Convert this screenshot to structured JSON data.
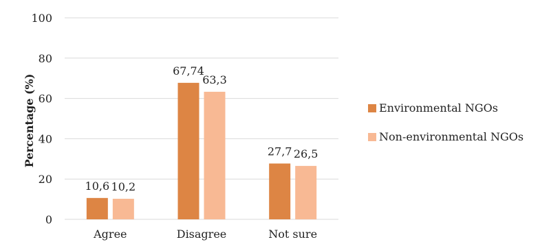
{
  "chart_data": {
    "type": "bar",
    "categories": [
      "Agree",
      "Disagree",
      "Not sure"
    ],
    "series": [
      {
        "name": "Environmental NGOs",
        "values": [
          10.6,
          67.74,
          27.7
        ],
        "labels": [
          "10,6",
          "67,74",
          "27,7"
        ],
        "color": "#dd8544"
      },
      {
        "name": "Non-environmental NGOs",
        "values": [
          10.2,
          63.3,
          26.5
        ],
        "labels": [
          "10,2",
          "63,3",
          "26,5"
        ],
        "color": "#f8b994"
      }
    ],
    "title": "",
    "xlabel": "",
    "ylabel": "Percentage (%)",
    "ylim": [
      0,
      100
    ],
    "yticks": [
      0,
      20,
      40,
      60,
      80,
      100
    ],
    "grid": true,
    "gridColor": "#d9d9d9",
    "legend": "right"
  }
}
